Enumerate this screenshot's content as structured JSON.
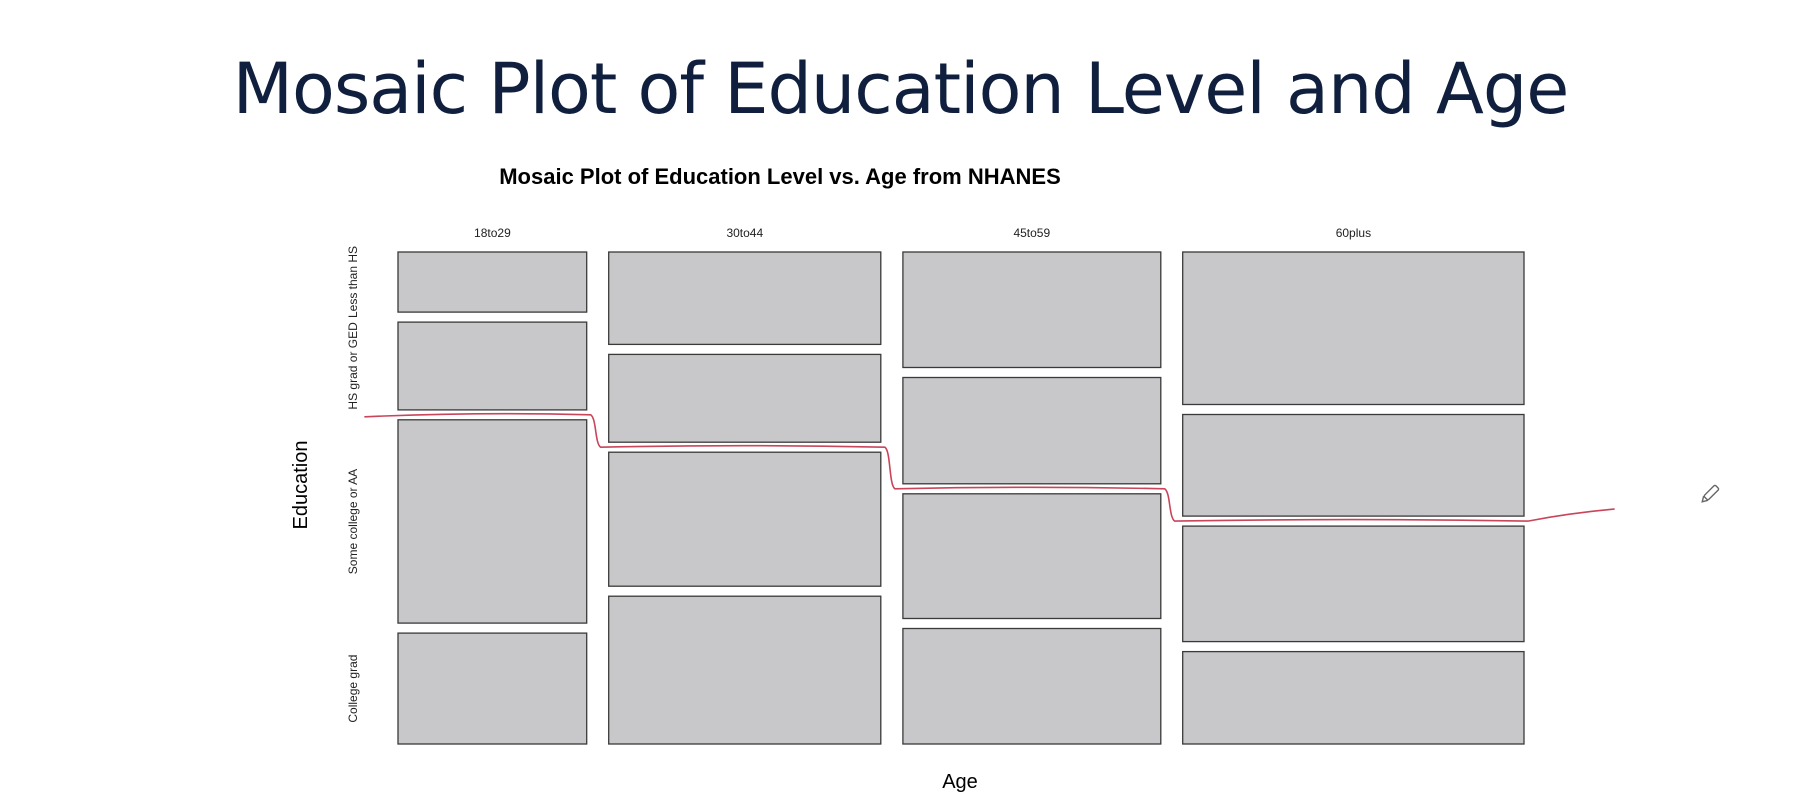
{
  "slide": {
    "title": "Mosaic Plot of Education Level and Age"
  },
  "chart_data": {
    "type": "mosaic",
    "title": "Mosaic Plot of Education Level vs. Age from NHANES",
    "xlabel": "Age",
    "ylabel": "Education",
    "x_categories": [
      "18to29",
      "30to44",
      "45to59",
      "60plus"
    ],
    "y_categories": [
      "Less than HS",
      "HS grad or GED",
      "Some college or AA",
      "College grad"
    ],
    "x_proportions": [
      0.172,
      0.248,
      0.235,
      0.311
    ],
    "y_proportions": [
      [
        0.13,
        0.19,
        0.44,
        0.24
      ],
      [
        0.2,
        0.19,
        0.29,
        0.32
      ],
      [
        0.25,
        0.23,
        0.27,
        0.25
      ],
      [
        0.33,
        0.22,
        0.25,
        0.2
      ]
    ],
    "tile_color": "#c8c7ca",
    "annotation_color": "#c9455b"
  }
}
